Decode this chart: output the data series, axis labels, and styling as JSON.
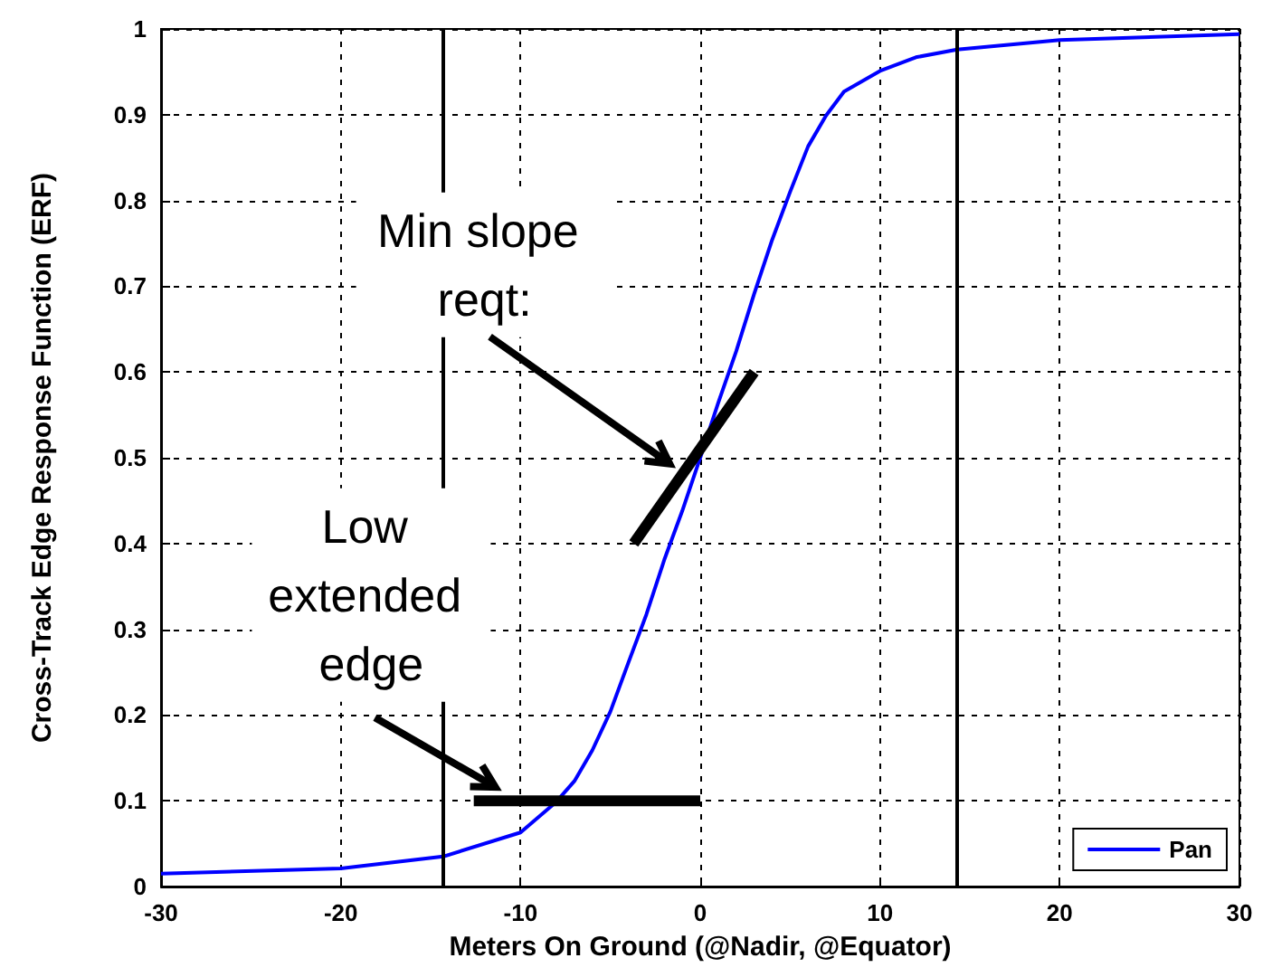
{
  "chart_data": {
    "type": "line",
    "xlabel": "Meters On Ground (@Nadir, @Equator)",
    "ylabel": "Cross-Track Edge Response Function (ERF)",
    "xlim": [
      -30,
      30
    ],
    "xticks": [
      -30,
      -20,
      -10,
      0,
      10,
      20,
      30
    ],
    "ylim": [
      0,
      1
    ],
    "yticks": [
      0,
      0.1,
      0.2,
      0.3,
      0.4,
      0.5,
      0.6,
      0.7,
      0.8,
      0.9,
      1
    ],
    "grid": true,
    "legend": "bottom right",
    "marker": "none",
    "series": [
      {
        "name": "Pan",
        "color": "#0000ff",
        "x": [
          -30,
          -20,
          -14.3,
          -10,
          -8,
          -7,
          -6,
          -5,
          -4,
          -3,
          -2,
          -1,
          0,
          1,
          2,
          3,
          4,
          5,
          6,
          7,
          8,
          10,
          12,
          14.3,
          20,
          30
        ],
        "values": [
          0.015,
          0.021,
          0.035,
          0.063,
          0.099,
          0.123,
          0.159,
          0.204,
          0.261,
          0.317,
          0.381,
          0.438,
          0.5,
          0.564,
          0.624,
          0.691,
          0.754,
          0.81,
          0.863,
          0.899,
          0.927,
          0.951,
          0.967,
          0.976,
          0.987,
          0.994
        ]
      },
      {
        "type": "line",
        "color": "#000000",
        "x": [
          -3.7,
          3
        ],
        "values": [
          0.4,
          0.6
        ]
      },
      {
        "type": "line",
        "color": "#000000",
        "x": [
          -12.6,
          0
        ],
        "values": [
          0.1,
          0.1
        ]
      }
    ],
    "ref_lines": [
      {
        "axis": "x",
        "value": -14.3,
        "color": "#000000"
      },
      {
        "axis": "x",
        "value": 14.3,
        "color": "#000000"
      }
    ],
    "annotations": [
      "Min slope reqt:",
      "Low extended edge"
    ]
  }
}
